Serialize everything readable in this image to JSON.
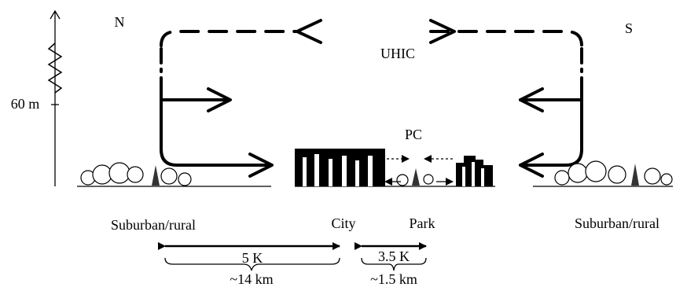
{
  "labels": {
    "north": "N",
    "south": "S",
    "uhic": "UHIC",
    "height": "60 m",
    "pc": "PC",
    "left_area": "Suburban/rural",
    "city": "City",
    "park": "Park",
    "right_area": "Suburban/rural",
    "city_diff": "5 K",
    "park_diff": "3.5 K",
    "city_width": "~14 km",
    "park_width": "~1.5 km"
  }
}
